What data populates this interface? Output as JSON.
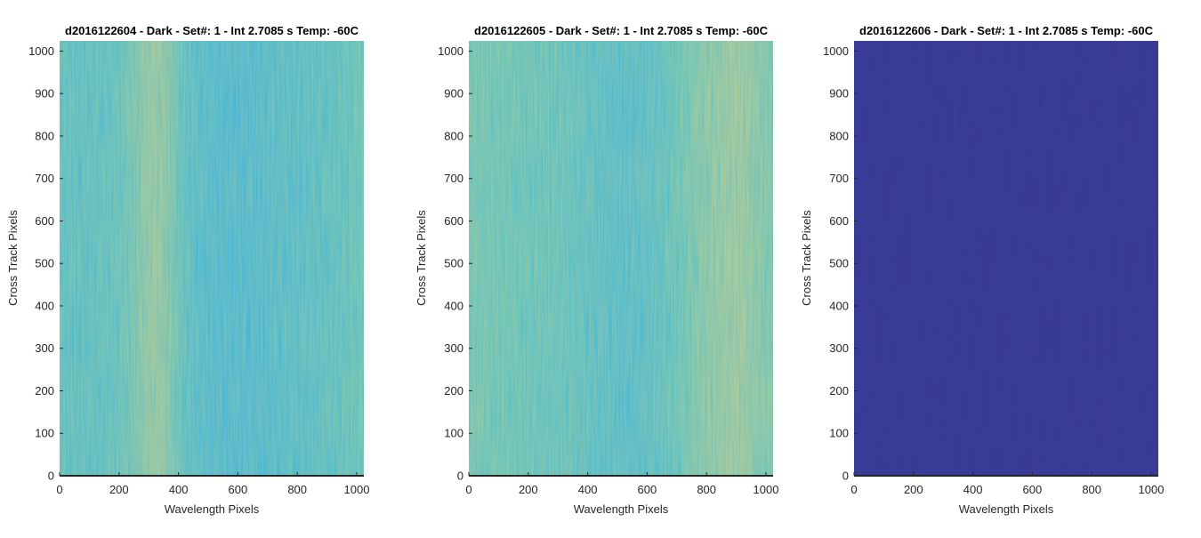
{
  "figure": {
    "colors": {
      "background": "#ffffff",
      "axis": "#262626",
      "title": "#000000"
    },
    "colormap": [
      "#352a87",
      "#0f5cdd",
      "#1481d6",
      "#06a4ca",
      "#2eb7a4",
      "#87bf77",
      "#d1bb59",
      "#fec832",
      "#f9fb0e"
    ]
  },
  "chart_data": [
    {
      "type": "heatmap",
      "title": "d2016122604 - Dark - Set#: 1 - Int 2.7085 s Temp: -60C",
      "xlabel": "Wavelength Pixels",
      "ylabel": "Cross Track Pixels",
      "xlim": [
        0,
        1024
      ],
      "ylim": [
        0,
        1024
      ],
      "xticks": [
        0,
        200,
        400,
        600,
        800,
        1000
      ],
      "yticks": [
        0,
        100,
        200,
        300,
        400,
        500,
        600,
        700,
        800,
        900,
        1000
      ],
      "grid": false,
      "column_profile": {
        "x": [
          0,
          64,
          128,
          192,
          256,
          288,
          320,
          352,
          384,
          416,
          480,
          544,
          608,
          672,
          736,
          800,
          864,
          928,
          992,
          1024
        ],
        "level": [
          0.47,
          0.45,
          0.46,
          0.48,
          0.55,
          0.6,
          0.63,
          0.6,
          0.54,
          0.46,
          0.4,
          0.38,
          0.38,
          0.39,
          0.41,
          0.42,
          0.44,
          0.46,
          0.5,
          0.52
        ]
      }
    },
    {
      "type": "heatmap",
      "title": "d2016122605 - Dark - Set#: 1 - Int 2.7085 s Temp: -60C",
      "xlabel": "Wavelength Pixels",
      "ylabel": "Cross Track Pixels",
      "xlim": [
        0,
        1024
      ],
      "ylim": [
        0,
        1024
      ],
      "xticks": [
        0,
        200,
        400,
        600,
        800,
        1000
      ],
      "yticks": [
        0,
        100,
        200,
        300,
        400,
        500,
        600,
        700,
        800,
        900,
        1000
      ],
      "grid": false,
      "column_profile": {
        "x": [
          0,
          64,
          128,
          192,
          256,
          320,
          384,
          448,
          512,
          576,
          640,
          704,
          768,
          832,
          896,
          928,
          960,
          1024
        ],
        "level": [
          0.53,
          0.52,
          0.51,
          0.5,
          0.49,
          0.48,
          0.45,
          0.42,
          0.4,
          0.41,
          0.44,
          0.5,
          0.56,
          0.6,
          0.63,
          0.62,
          0.58,
          0.55
        ]
      }
    },
    {
      "type": "heatmap",
      "title": "d2016122606 - Dark - Set#: 1 - Int 2.7085 s Temp: -60C",
      "xlabel": "Wavelength Pixels",
      "ylabel": "Cross Track Pixels",
      "xlim": [
        0,
        1024
      ],
      "ylim": [
        0,
        1024
      ],
      "xticks": [
        0,
        200,
        400,
        600,
        800,
        1000
      ],
      "yticks": [
        0,
        100,
        200,
        300,
        400,
        500,
        600,
        700,
        800,
        900,
        1000
      ],
      "grid": false,
      "column_profile": {
        "x": [
          0,
          1024
        ],
        "level": [
          0.01,
          0.01
        ]
      }
    }
  ]
}
